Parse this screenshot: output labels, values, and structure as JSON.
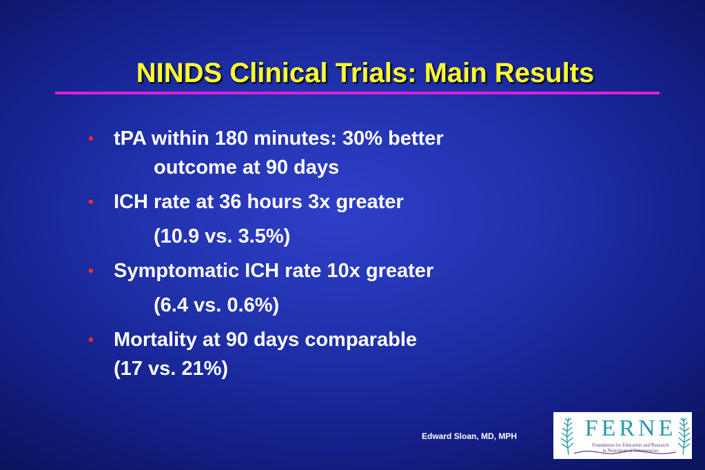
{
  "slide": {
    "title": "NINDS Clinical Trials:  Main Results",
    "colors": {
      "background": "#2233b0",
      "title": "#ffff33",
      "rule": "#e020d8",
      "bullet_marker": "#ff2a2a",
      "body_text": "#ffffff"
    },
    "bullets": [
      {
        "text": "tPA within 180 minutes:  30% better",
        "continuation": "outcome at 90 days"
      },
      {
        "text": "ICH rate at 36 hours 3x greater",
        "continuation": "(10.9 vs. 3.5%)"
      },
      {
        "text": "Symptomatic ICH rate 10x greater",
        "continuation": "(6.4 vs. 0.6%)"
      },
      {
        "text": "Mortality at 90 days comparable",
        "continuation": "(17 vs. 21%)"
      }
    ],
    "bullet_marker": "•"
  },
  "footer": {
    "author": "Edward Sloan, MD, MPH",
    "logo": {
      "wordmark": "FERNE",
      "subtitle_line1": "Foundation for Education and Research",
      "subtitle_line2": "in Neurological Emergencies",
      "icon": "fern-frond-icon",
      "color_teal": "#2a9aa8",
      "color_purple": "#5a3a80"
    }
  }
}
